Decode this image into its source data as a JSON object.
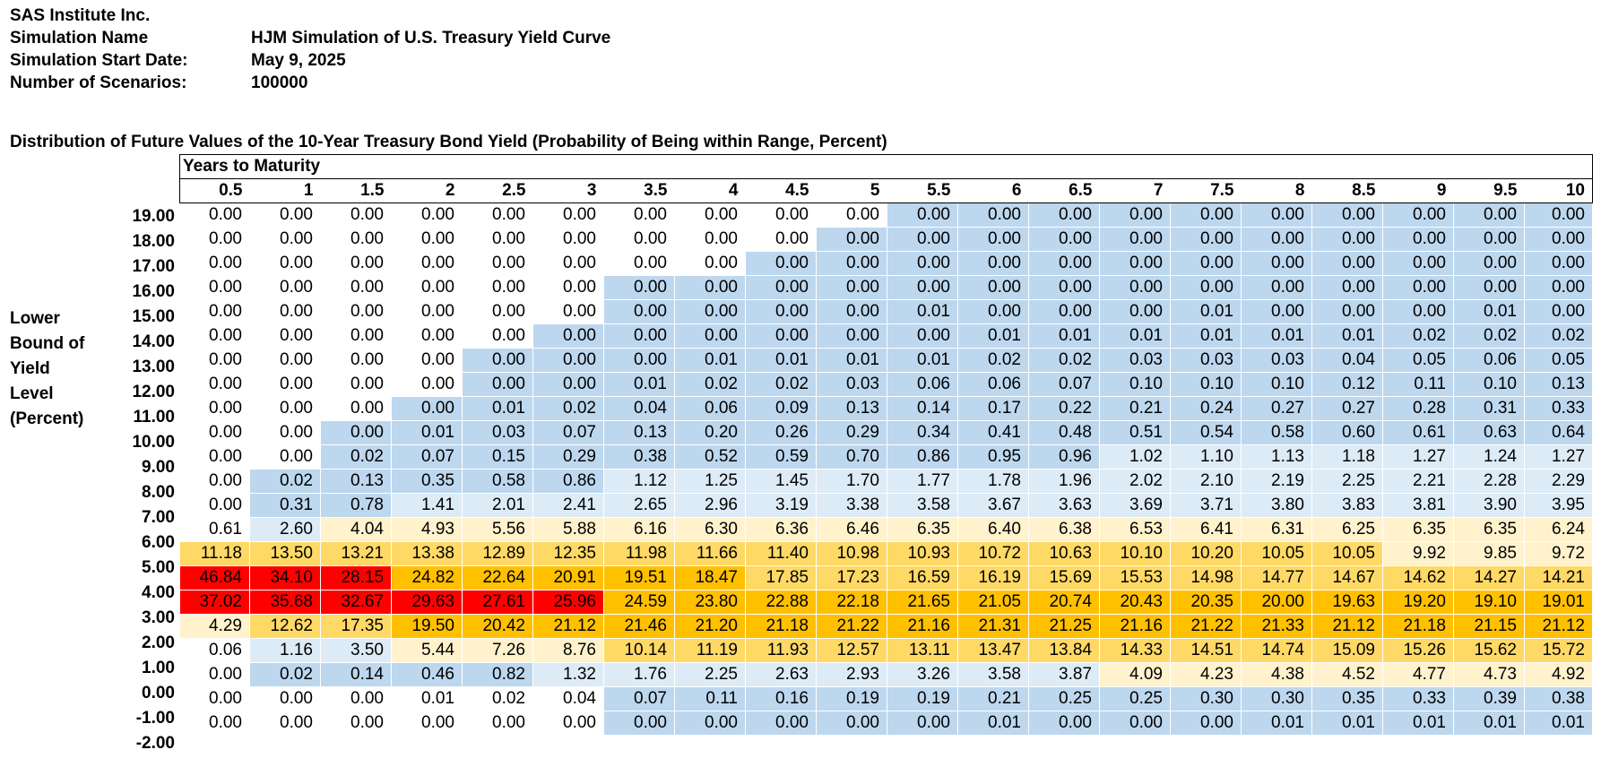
{
  "header": {
    "company": "SAS Institute Inc.",
    "simulation_name_label": "Simulation Name",
    "simulation_name": "HJM Simulation of U.S. Treasury Yield Curve",
    "start_date_label": "Simulation Start Date:",
    "start_date": "May 9, 2025",
    "scenarios_label": "Number of Scenarios:",
    "scenarios": "100000"
  },
  "table_title": "Distribution of Future Values of the 10-Year Treasury Bond Yield (Probability of Being within Range, Percent)",
  "years_to_maturity_label": "Years to Maturity",
  "side_label": [
    "Lower",
    "Bound of",
    "Yield",
    "Level",
    "(Percent)"
  ],
  "columns": [
    "0.5",
    "1",
    "1.5",
    "2",
    "2.5",
    "3",
    "3.5",
    "4",
    "4.5",
    "5",
    "5.5",
    "6",
    "6.5",
    "7",
    "7.5",
    "8",
    "8.5",
    "9",
    "9.5",
    "10"
  ],
  "rows": [
    {
      "label": "19.00",
      "values": [
        "0.00",
        "0.00",
        "0.00",
        "0.00",
        "0.00",
        "0.00",
        "0.00",
        "0.00",
        "0.00",
        "0.00",
        "0.00",
        "0.00",
        "0.00",
        "0.00",
        "0.00",
        "0.00",
        "0.00",
        "0.00",
        "0.00",
        "0.00"
      ]
    },
    {
      "label": "18.00",
      "values": [
        "0.00",
        "0.00",
        "0.00",
        "0.00",
        "0.00",
        "0.00",
        "0.00",
        "0.00",
        "0.00",
        "0.00",
        "0.00",
        "0.00",
        "0.00",
        "0.00",
        "0.00",
        "0.00",
        "0.00",
        "0.00",
        "0.00",
        "0.00"
      ]
    },
    {
      "label": "17.00",
      "values": [
        "0.00",
        "0.00",
        "0.00",
        "0.00",
        "0.00",
        "0.00",
        "0.00",
        "0.00",
        "0.00",
        "0.00",
        "0.00",
        "0.00",
        "0.00",
        "0.00",
        "0.00",
        "0.00",
        "0.00",
        "0.00",
        "0.00",
        "0.00"
      ]
    },
    {
      "label": "16.00",
      "values": [
        "0.00",
        "0.00",
        "0.00",
        "0.00",
        "0.00",
        "0.00",
        "0.00",
        "0.00",
        "0.00",
        "0.00",
        "0.00",
        "0.00",
        "0.00",
        "0.00",
        "0.00",
        "0.00",
        "0.00",
        "0.00",
        "0.00",
        "0.00"
      ]
    },
    {
      "label": "15.00",
      "values": [
        "0.00",
        "0.00",
        "0.00",
        "0.00",
        "0.00",
        "0.00",
        "0.00",
        "0.00",
        "0.00",
        "0.00",
        "0.01",
        "0.00",
        "0.00",
        "0.00",
        "0.01",
        "0.00",
        "0.00",
        "0.00",
        "0.01",
        "0.00"
      ]
    },
    {
      "label": "14.00",
      "values": [
        "0.00",
        "0.00",
        "0.00",
        "0.00",
        "0.00",
        "0.00",
        "0.00",
        "0.00",
        "0.00",
        "0.00",
        "0.00",
        "0.01",
        "0.01",
        "0.01",
        "0.01",
        "0.01",
        "0.01",
        "0.02",
        "0.02",
        "0.02"
      ]
    },
    {
      "label": "13.00",
      "values": [
        "0.00",
        "0.00",
        "0.00",
        "0.00",
        "0.00",
        "0.00",
        "0.00",
        "0.01",
        "0.01",
        "0.01",
        "0.01",
        "0.02",
        "0.02",
        "0.03",
        "0.03",
        "0.03",
        "0.04",
        "0.05",
        "0.06",
        "0.05"
      ]
    },
    {
      "label": "12.00",
      "values": [
        "0.00",
        "0.00",
        "0.00",
        "0.00",
        "0.00",
        "0.00",
        "0.01",
        "0.02",
        "0.02",
        "0.03",
        "0.06",
        "0.06",
        "0.07",
        "0.10",
        "0.10",
        "0.10",
        "0.12",
        "0.11",
        "0.10",
        "0.13"
      ]
    },
    {
      "label": "11.00",
      "values": [
        "0.00",
        "0.00",
        "0.00",
        "0.00",
        "0.01",
        "0.02",
        "0.04",
        "0.06",
        "0.09",
        "0.13",
        "0.14",
        "0.17",
        "0.22",
        "0.21",
        "0.24",
        "0.27",
        "0.27",
        "0.28",
        "0.31",
        "0.33"
      ]
    },
    {
      "label": "10.00",
      "values": [
        "0.00",
        "0.00",
        "0.00",
        "0.01",
        "0.03",
        "0.07",
        "0.13",
        "0.20",
        "0.26",
        "0.29",
        "0.34",
        "0.41",
        "0.48",
        "0.51",
        "0.54",
        "0.58",
        "0.60",
        "0.61",
        "0.63",
        "0.64"
      ]
    },
    {
      "label": "9.00",
      "values": [
        "0.00",
        "0.00",
        "0.02",
        "0.07",
        "0.15",
        "0.29",
        "0.38",
        "0.52",
        "0.59",
        "0.70",
        "0.86",
        "0.95",
        "0.96",
        "1.02",
        "1.10",
        "1.13",
        "1.18",
        "1.27",
        "1.24",
        "1.27"
      ]
    },
    {
      "label": "8.00",
      "values": [
        "0.00",
        "0.02",
        "0.13",
        "0.35",
        "0.58",
        "0.86",
        "1.12",
        "1.25",
        "1.45",
        "1.70",
        "1.77",
        "1.78",
        "1.96",
        "2.02",
        "2.10",
        "2.19",
        "2.25",
        "2.21",
        "2.28",
        "2.29"
      ]
    },
    {
      "label": "7.00",
      "values": [
        "0.00",
        "0.31",
        "0.78",
        "1.41",
        "2.01",
        "2.41",
        "2.65",
        "2.96",
        "3.19",
        "3.38",
        "3.58",
        "3.67",
        "3.63",
        "3.69",
        "3.71",
        "3.80",
        "3.83",
        "3.81",
        "3.90",
        "3.95"
      ]
    },
    {
      "label": "6.00",
      "values": [
        "0.61",
        "2.60",
        "4.04",
        "4.93",
        "5.56",
        "5.88",
        "6.16",
        "6.30",
        "6.36",
        "6.46",
        "6.35",
        "6.40",
        "6.38",
        "6.53",
        "6.41",
        "6.31",
        "6.25",
        "6.35",
        "6.35",
        "6.24"
      ]
    },
    {
      "label": "5.00",
      "values": [
        "11.18",
        "13.50",
        "13.21",
        "13.38",
        "12.89",
        "12.35",
        "11.98",
        "11.66",
        "11.40",
        "10.98",
        "10.93",
        "10.72",
        "10.63",
        "10.10",
        "10.20",
        "10.05",
        "10.05",
        "9.92",
        "9.85",
        "9.72"
      ]
    },
    {
      "label": "4.00",
      "values": [
        "46.84",
        "34.10",
        "28.15",
        "24.82",
        "22.64",
        "20.91",
        "19.51",
        "18.47",
        "17.85",
        "17.23",
        "16.59",
        "16.19",
        "15.69",
        "15.53",
        "14.98",
        "14.77",
        "14.67",
        "14.62",
        "14.27",
        "14.21"
      ]
    },
    {
      "label": "3.00",
      "values": [
        "37.02",
        "35.68",
        "32.67",
        "29.63",
        "27.61",
        "25.96",
        "24.59",
        "23.80",
        "22.88",
        "22.18",
        "21.65",
        "21.05",
        "20.74",
        "20.43",
        "20.35",
        "20.00",
        "19.63",
        "19.20",
        "19.10",
        "19.01"
      ]
    },
    {
      "label": "2.00",
      "values": [
        "4.29",
        "12.62",
        "17.35",
        "19.50",
        "20.42",
        "21.12",
        "21.46",
        "21.20",
        "21.18",
        "21.22",
        "21.16",
        "21.31",
        "21.25",
        "21.16",
        "21.22",
        "21.33",
        "21.12",
        "21.18",
        "21.15",
        "21.12"
      ]
    },
    {
      "label": "1.00",
      "values": [
        "0.06",
        "1.16",
        "3.50",
        "5.44",
        "7.26",
        "8.76",
        "10.14",
        "11.19",
        "11.93",
        "12.57",
        "13.11",
        "13.47",
        "13.84",
        "14.33",
        "14.51",
        "14.74",
        "15.09",
        "15.26",
        "15.62",
        "15.72"
      ]
    },
    {
      "label": "0.00",
      "values": [
        "0.00",
        "0.02",
        "0.14",
        "0.46",
        "0.82",
        "1.32",
        "1.76",
        "2.25",
        "2.63",
        "2.93",
        "3.26",
        "3.58",
        "3.87",
        "4.09",
        "4.23",
        "4.38",
        "4.52",
        "4.77",
        "4.73",
        "4.92"
      ]
    },
    {
      "label": "-1.00",
      "values": [
        "0.00",
        "0.00",
        "0.00",
        "0.01",
        "0.02",
        "0.04",
        "0.07",
        "0.11",
        "0.16",
        "0.19",
        "0.19",
        "0.21",
        "0.25",
        "0.25",
        "0.30",
        "0.30",
        "0.35",
        "0.33",
        "0.39",
        "0.38"
      ]
    },
    {
      "label": "-2.00",
      "values": [
        "0.00",
        "0.00",
        "0.00",
        "0.00",
        "0.00",
        "0.00",
        "0.00",
        "0.00",
        "0.00",
        "0.00",
        "0.00",
        "0.01",
        "0.00",
        "0.00",
        "0.00",
        "0.01",
        "0.01",
        "0.01",
        "0.01",
        "0.01"
      ]
    }
  ],
  "colors": {
    "red": "#ff0000",
    "orange": "#ffc000",
    "light_orange": "#ffd966",
    "pale_yellow": "#fff2cc",
    "light_blue": "#ddebf7",
    "blue": "#bdd7ee",
    "white": "#ffffff"
  }
}
